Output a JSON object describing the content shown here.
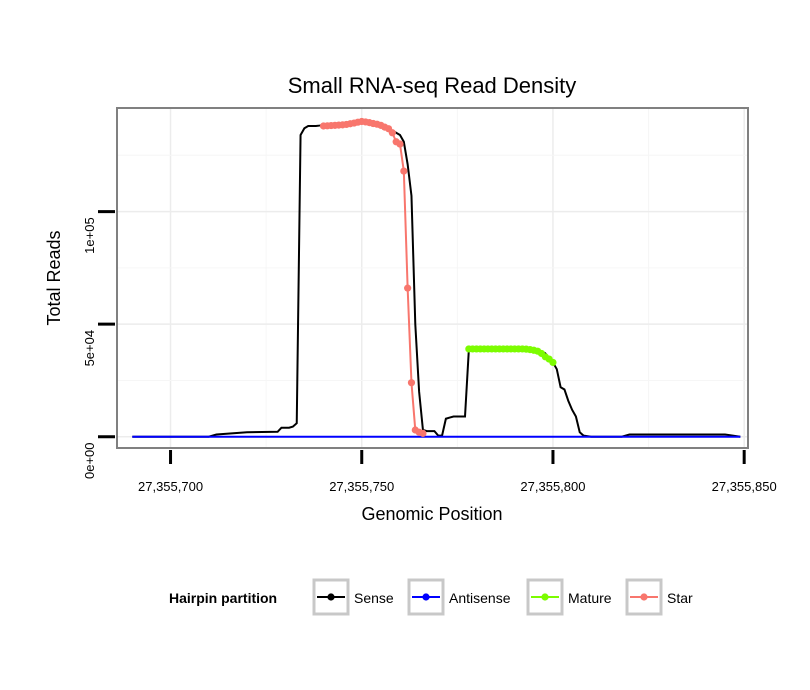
{
  "chart_data": {
    "type": "line",
    "title": "Small RNA-seq Read Density",
    "xlabel": "Genomic Position",
    "ylabel": "Total Reads",
    "xlim": [
      27355686,
      27355851
    ],
    "ylim": [
      -5000,
      146000
    ],
    "x_ticks": [
      27355700,
      27355750,
      27355800,
      27355850
    ],
    "x_tick_labels": [
      "27,355,700",
      "27,355,750",
      "27,355,800",
      "27,355,850"
    ],
    "y_ticks": [
      0,
      50000,
      100000
    ],
    "y_tick_labels": [
      "0e+00",
      "5e+04",
      "1e+05"
    ],
    "grid": true,
    "legend": {
      "title": "Hairpin partition",
      "position": "bottom",
      "entries": [
        {
          "name": "Sense",
          "color": "#000000"
        },
        {
          "name": "Antisense",
          "color": "#0000ff"
        },
        {
          "name": "Mature",
          "color": "#7cfc00"
        },
        {
          "name": "Star",
          "color": "#f8766d"
        }
      ]
    },
    "series": [
      {
        "name": "Sense",
        "color": "#000000",
        "x": [
          27355690,
          27355700,
          27355710,
          27355712,
          27355720,
          27355728,
          27355729,
          27355731,
          27355732,
          27355733,
          27355734,
          27355735,
          27355736,
          27355737,
          27355738,
          27355739,
          27355740,
          27355748,
          27355750,
          27355755,
          27355758,
          27355760,
          27355761,
          27355762,
          27355763,
          27355764,
          27355765,
          27355766,
          27355767,
          27355768,
          27355769,
          27355770,
          27355771,
          27355772,
          27355773,
          27355774,
          27355775,
          27355776,
          27355777,
          27355778,
          27355780,
          27355790,
          27355795,
          27355797,
          27355798,
          27355799,
          27355800,
          27355801,
          27355802,
          27355803,
          27355804,
          27355805,
          27355806,
          27355807,
          27355808,
          27355810,
          27355818,
          27355820,
          27355830,
          27355840,
          27355845,
          27355849
        ],
        "values": [
          0,
          0,
          0,
          1000,
          2000,
          2200,
          4000,
          4000,
          4500,
          6000,
          134000,
          137000,
          138000,
          138000,
          138000,
          138200,
          138500,
          139000,
          139500,
          138000,
          136000,
          134000,
          131000,
          121000,
          107000,
          50000,
          20000,
          3000,
          2500,
          2500,
          2500,
          500,
          500,
          8000,
          8500,
          9000,
          9000,
          9000,
          9000,
          38500,
          39000,
          39000,
          38500,
          38000,
          37000,
          35000,
          33000,
          30000,
          22000,
          21000,
          16000,
          12000,
          9000,
          2000,
          500,
          0,
          0,
          1000,
          1000,
          1000,
          1000,
          0
        ]
      },
      {
        "name": "Antisense",
        "color": "#0000ff",
        "x": [
          27355690,
          27355849
        ],
        "values": [
          0,
          0
        ]
      },
      {
        "name": "Mature",
        "color": "#7cfc00",
        "x": [
          27355778,
          27355779,
          27355780,
          27355781,
          27355782,
          27355783,
          27355784,
          27355785,
          27355786,
          27355787,
          27355788,
          27355789,
          27355790,
          27355791,
          27355792,
          27355793,
          27355794,
          27355795,
          27355796,
          27355797,
          27355798,
          27355799,
          27355800
        ],
        "values": [
          39000,
          39000,
          39000,
          39000,
          39000,
          39000,
          39000,
          39000,
          39000,
          39000,
          39000,
          39000,
          39000,
          39000,
          39000,
          38900,
          38700,
          38400,
          38000,
          37000,
          35500,
          34500,
          33000
        ]
      },
      {
        "name": "Star",
        "color": "#f8766d",
        "x": [
          27355740,
          27355741,
          27355742,
          27355743,
          27355744,
          27355745,
          27355746,
          27355747,
          27355748,
          27355749,
          27355750,
          27355751,
          27355752,
          27355753,
          27355754,
          27355755,
          27355756,
          27355757,
          27355758,
          27355759,
          27355760,
          27355761,
          27355762,
          27355763,
          27355764,
          27355765,
          27355766
        ],
        "values": [
          138000,
          138100,
          138200,
          138300,
          138400,
          138500,
          138700,
          139000,
          139300,
          139700,
          140000,
          139800,
          139500,
          139100,
          138800,
          138300,
          137500,
          136800,
          135000,
          131000,
          130000,
          118000,
          66000,
          24000,
          3000,
          2000,
          1500
        ]
      }
    ]
  }
}
